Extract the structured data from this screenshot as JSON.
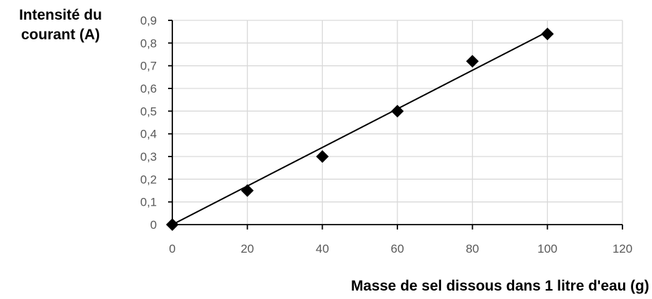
{
  "chart_data": {
    "type": "scatter",
    "xlabel": "Masse de sel dissous dans 1 litre d'eau (g)",
    "ylabel": "Intensité du courant (A)",
    "x": [
      0,
      20,
      40,
      60,
      80,
      100
    ],
    "y": [
      0,
      0.15,
      0.3,
      0.5,
      0.72,
      0.84
    ],
    "xlim": [
      0,
      120
    ],
    "ylim": [
      0,
      0.9
    ],
    "x_ticks": [
      0,
      20,
      40,
      60,
      80,
      100,
      120
    ],
    "x_tick_labels": [
      "0",
      "20",
      "40",
      "60",
      "80",
      "100",
      "120"
    ],
    "y_ticks": [
      0,
      0.1,
      0.2,
      0.3,
      0.4,
      0.5,
      0.6,
      0.7,
      0.8,
      0.9
    ],
    "y_tick_labels": [
      "0",
      "0,1",
      "0,2",
      "0,3",
      "0,4",
      "0,5",
      "0,6",
      "0,7",
      "0,8",
      "0,9"
    ],
    "trendline": {
      "type": "linear",
      "from": [
        0,
        0
      ],
      "to": [
        100,
        0.85
      ]
    },
    "grid": true,
    "marker": "diamond",
    "colors": {
      "marker": "#000000",
      "trendline": "#000000",
      "grid": "#d9d9d9",
      "axis": "#000000",
      "tick_label": "#595959"
    }
  }
}
